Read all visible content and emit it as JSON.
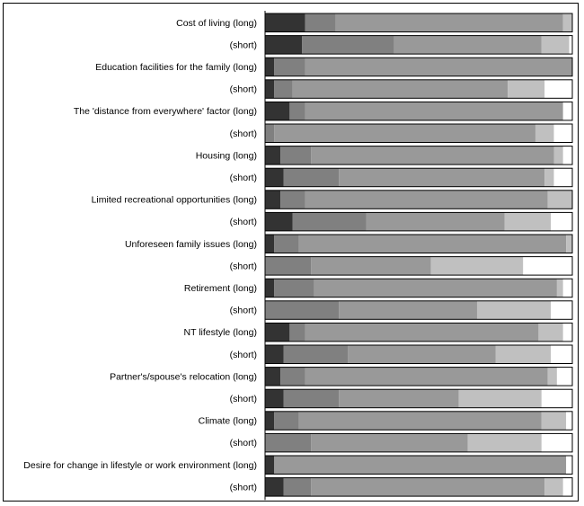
{
  "chart_data": {
    "type": "bar",
    "stacked": true,
    "orientation": "horizontal",
    "percent": true,
    "grid": false,
    "legend": "none",
    "xlim": [
      0,
      100
    ],
    "categories": [
      "Cost of living (long)",
      "(short)",
      "Education facilities for the family (long)",
      "(short)",
      "The 'distance from everywhere' factor (long)",
      "(short)",
      "Housing (long)",
      "(short)",
      "Limited recreational opportunities (long)",
      "(short)",
      "Unforeseen family issues (long)",
      "(short)",
      "Retirement (long)",
      "(short)",
      "NT lifestyle (long)",
      "(short)",
      "Partner's/spouse's relocation (long)",
      "(short)",
      "Climate (long)",
      "(short)",
      "Desire for change in lifestyle or work environment (long)",
      "(short)"
    ],
    "series": [
      {
        "color": "#333333",
        "values": [
          13,
          12,
          3,
          3,
          8,
          0,
          5,
          6,
          5,
          9,
          3,
          0,
          3,
          0,
          8,
          6,
          5,
          6,
          3,
          0,
          3,
          6
        ]
      },
      {
        "color": "#808080",
        "values": [
          10,
          30,
          10,
          6,
          5,
          3,
          10,
          18,
          8,
          24,
          8,
          15,
          13,
          24,
          5,
          21,
          8,
          18,
          8,
          15,
          0,
          9
        ]
      },
      {
        "color": "#999999",
        "values": [
          74,
          48,
          87,
          70,
          84,
          85,
          79,
          67,
          79,
          45,
          87,
          39,
          79,
          45,
          76,
          48,
          79,
          39,
          79,
          51,
          95,
          76
        ]
      },
      {
        "color": "#c0c0c0",
        "values": [
          3,
          9,
          0,
          12,
          0,
          6,
          3,
          3,
          8,
          15,
          2,
          30,
          2,
          24,
          8,
          18,
          3,
          27,
          8,
          24,
          0,
          6
        ]
      },
      {
        "color": "#ffffff",
        "values": [
          0,
          1,
          0,
          9,
          3,
          6,
          3,
          6,
          0,
          7,
          0,
          16,
          3,
          7,
          3,
          7,
          5,
          10,
          2,
          10,
          2,
          3
        ]
      }
    ]
  }
}
